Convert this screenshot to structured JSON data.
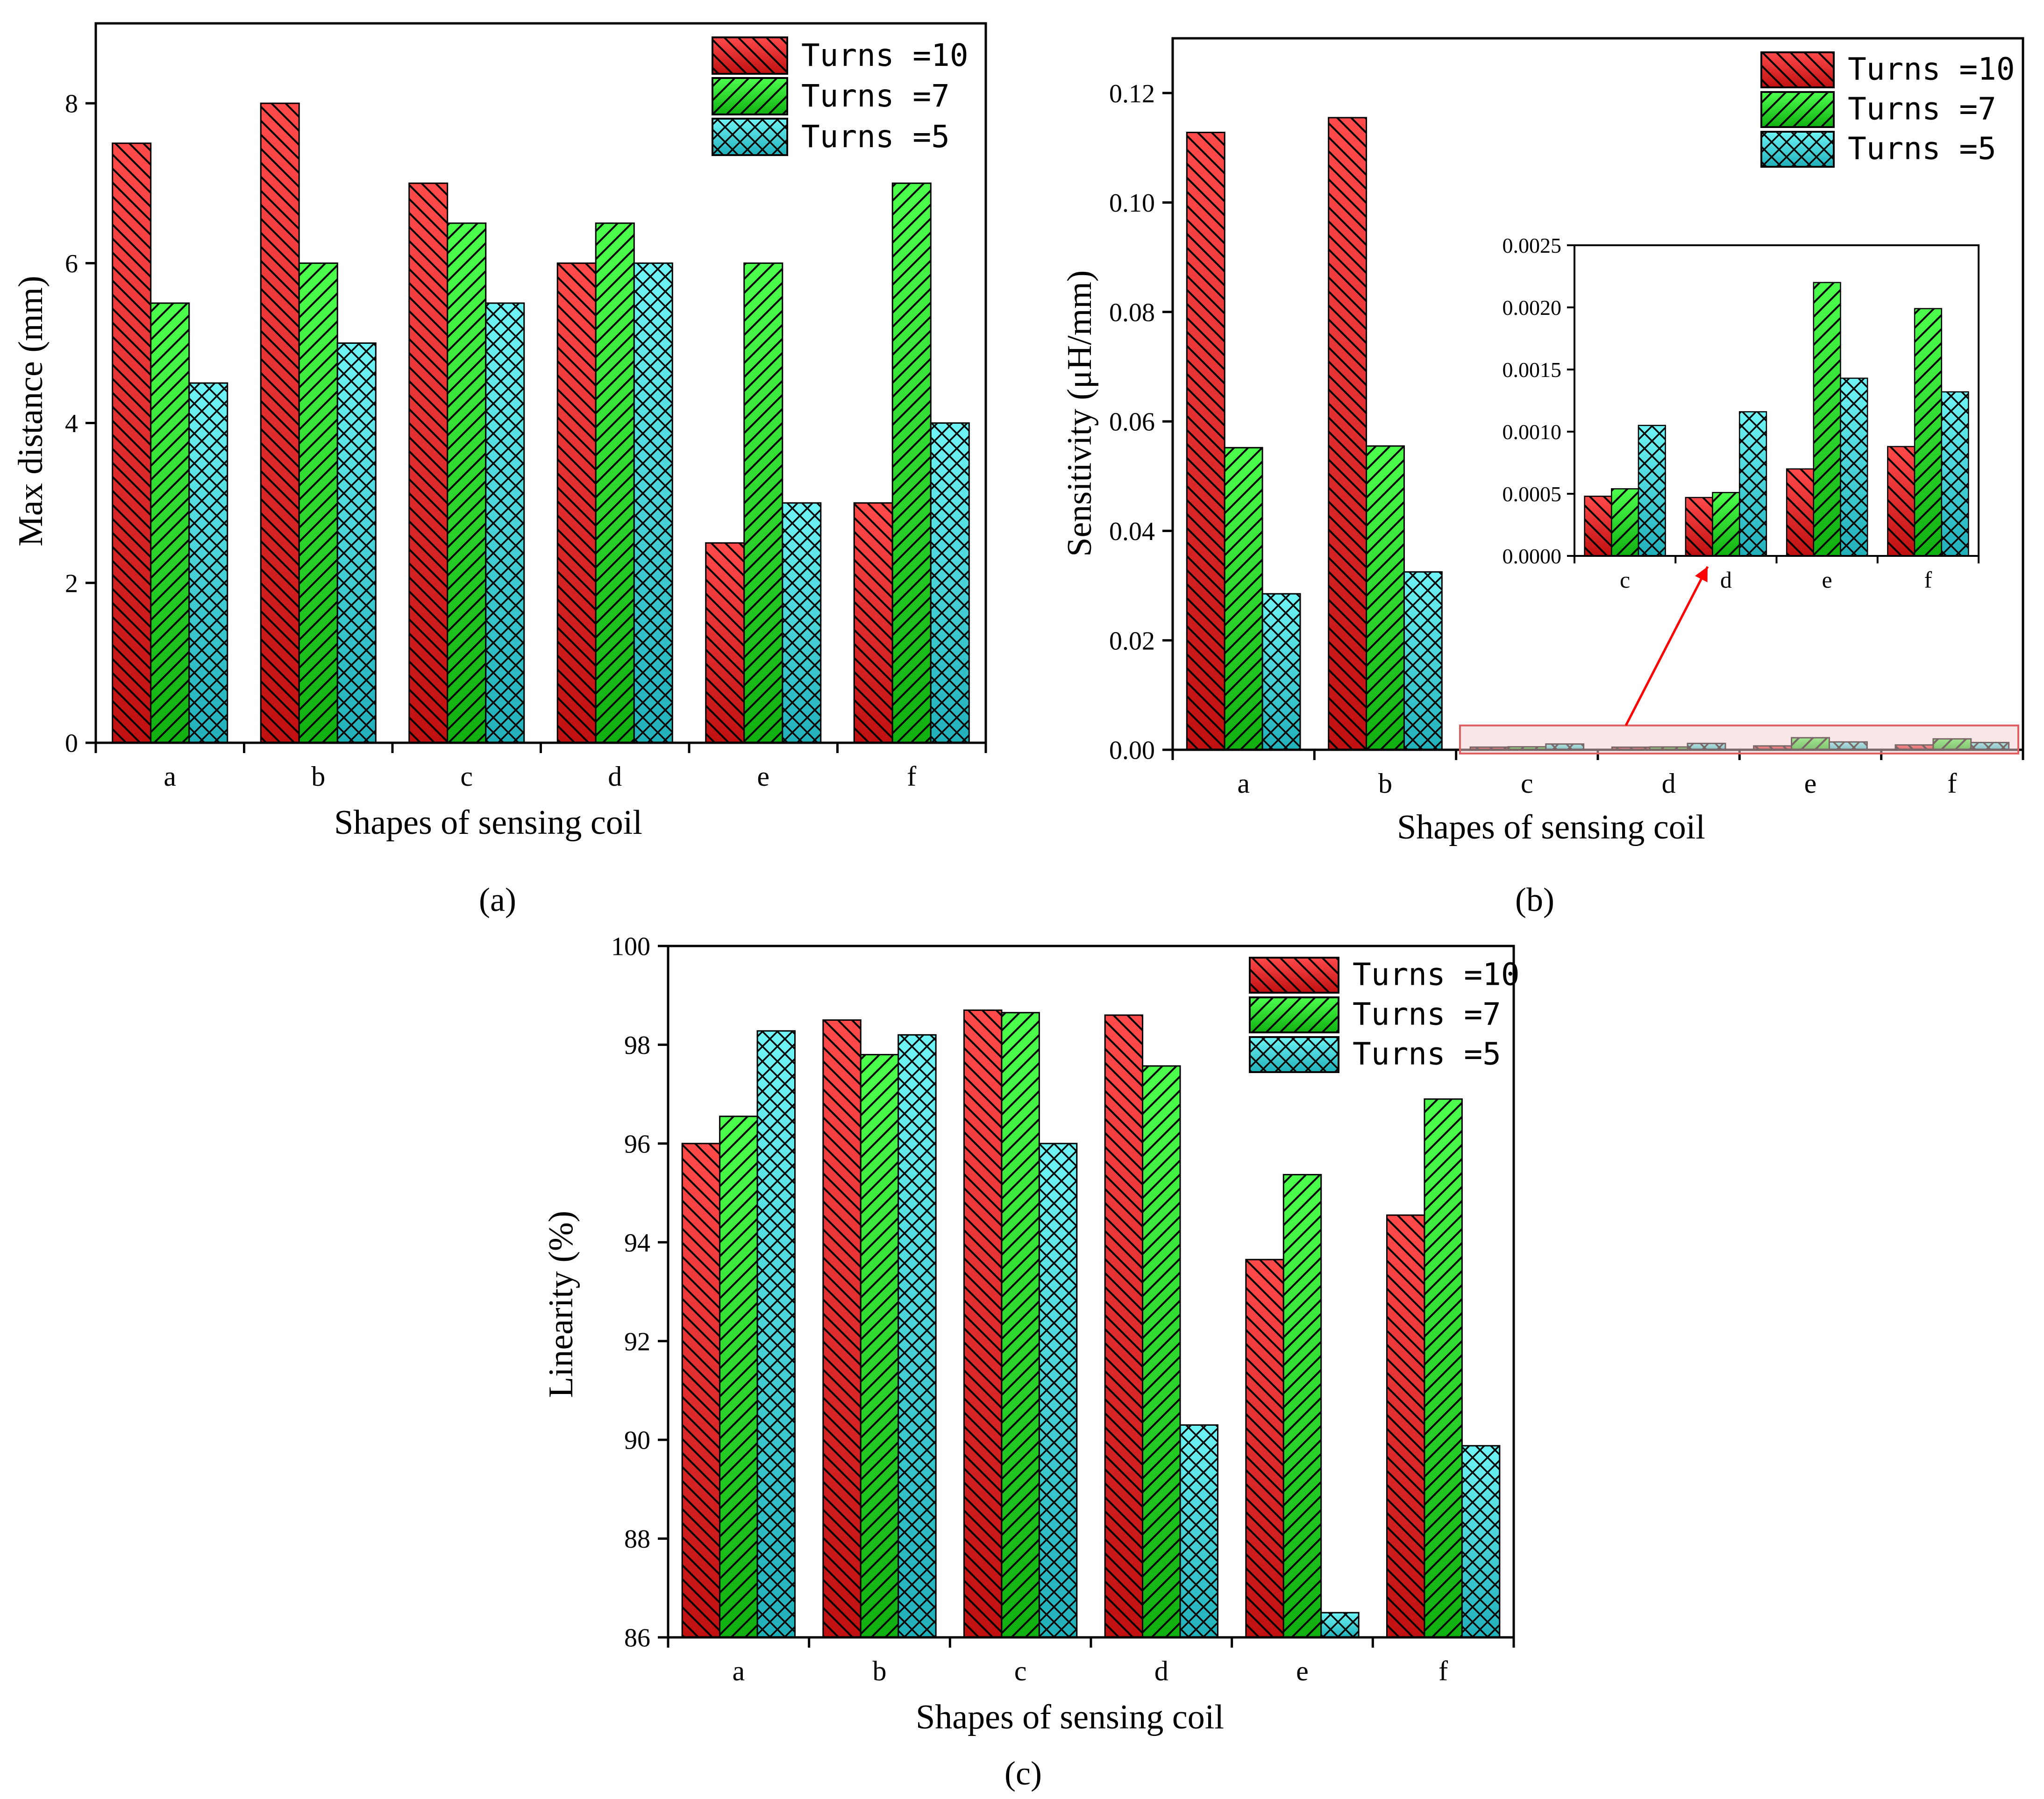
{
  "figure": {
    "panels": [
      "a",
      "b",
      "c"
    ],
    "panel_labels": [
      "(a)",
      "(b)",
      "(c)"
    ]
  },
  "colors": {
    "turns10_fill_top": "#ff4a4a",
    "turns10_fill_bottom": "#c01010",
    "turns7_fill_top": "#4dff4d",
    "turns7_fill_bottom": "#10b010",
    "turns5_fill_top": "#6ff5f5",
    "turns5_fill_bottom": "#20b0b8",
    "zoom_box": "#e06060",
    "arrow": "#ff0000"
  },
  "chart_data": [
    {
      "id": "a",
      "type": "bar",
      "title": "",
      "xlabel": "Shapes of sensing coil",
      "ylabel": "Max distance (mm)",
      "categories": [
        "a",
        "b",
        "c",
        "d",
        "e",
        "f"
      ],
      "ylim": [
        0,
        9
      ],
      "yticks": [
        0,
        2,
        4,
        6,
        8
      ],
      "ytick_labels": [
        "0",
        "2",
        "4",
        "6",
        "8"
      ],
      "legend": "top-right",
      "series": [
        {
          "name": "Turns =10",
          "pattern": "backslash",
          "values": [
            7.5,
            8.0,
            7.0,
            6.0,
            2.5,
            3.0
          ]
        },
        {
          "name": "Turns =7",
          "pattern": "slash",
          "values": [
            5.5,
            6.0,
            6.5,
            6.5,
            6.0,
            7.0
          ]
        },
        {
          "name": "Turns =5",
          "pattern": "cross",
          "values": [
            4.5,
            5.0,
            5.5,
            6.0,
            3.0,
            4.0
          ]
        }
      ]
    },
    {
      "id": "b",
      "type": "bar",
      "title": "",
      "xlabel": "Shapes of sensing coil",
      "ylabel": "Sensitivity (μH/mm)",
      "categories": [
        "a",
        "b",
        "c",
        "d",
        "e",
        "f"
      ],
      "ylim": [
        0,
        0.13
      ],
      "yticks": [
        0,
        0.02,
        0.04,
        0.06,
        0.08,
        0.1,
        0.12
      ],
      "ytick_labels": [
        "0.00",
        "0.02",
        "0.04",
        "0.06",
        "0.08",
        "0.10",
        "0.12"
      ],
      "legend": "top-right",
      "series": [
        {
          "name": "Turns =10",
          "pattern": "backslash",
          "values": [
            0.1128,
            0.1155,
            0.00048,
            0.00047,
            0.0007,
            0.00088
          ]
        },
        {
          "name": "Turns =7",
          "pattern": "slash",
          "values": [
            0.0552,
            0.0555,
            0.00054,
            0.00051,
            0.0022,
            0.00199
          ]
        },
        {
          "name": "Turns =5",
          "pattern": "cross",
          "values": [
            0.0285,
            0.0325,
            0.00105,
            0.00116,
            0.00143,
            0.00132
          ]
        }
      ],
      "inset": {
        "type": "bar",
        "categories": [
          "c",
          "d",
          "e",
          "f"
        ],
        "ylim": [
          0,
          0.0025
        ],
        "yticks": [
          0,
          0.0005,
          0.001,
          0.0015,
          0.002,
          0.0025
        ],
        "ytick_labels": [
          "0.0000",
          "0.0005",
          "0.0010",
          "0.0015",
          "0.0020",
          "0.0025"
        ],
        "series": [
          {
            "name": "Turns =10",
            "values": [
              0.00048,
              0.00047,
              0.0007,
              0.00088
            ]
          },
          {
            "name": "Turns =7",
            "values": [
              0.00054,
              0.00051,
              0.0022,
              0.00199
            ]
          },
          {
            "name": "Turns =5",
            "values": [
              0.00105,
              0.00116,
              0.00143,
              0.00132
            ]
          }
        ]
      }
    },
    {
      "id": "c",
      "type": "bar",
      "title": "",
      "xlabel": "Shapes of sensing coil",
      "ylabel": "Linearity (%)",
      "categories": [
        "a",
        "b",
        "c",
        "d",
        "e",
        "f"
      ],
      "ylim": [
        86,
        100
      ],
      "yticks": [
        86,
        88,
        90,
        92,
        94,
        96,
        98,
        100
      ],
      "ytick_labels": [
        "86",
        "88",
        "90",
        "92",
        "94",
        "96",
        "98",
        "100"
      ],
      "legend": "top-right",
      "series": [
        {
          "name": "Turns =10",
          "pattern": "backslash",
          "values": [
            96.0,
            98.5,
            98.7,
            98.6,
            93.65,
            94.55
          ]
        },
        {
          "name": "Turns =7",
          "pattern": "slash",
          "values": [
            96.55,
            97.8,
            98.65,
            97.57,
            95.37,
            96.9
          ]
        },
        {
          "name": "Turns =5",
          "pattern": "cross",
          "values": [
            98.28,
            98.2,
            96.0,
            90.3,
            86.5,
            89.88
          ]
        }
      ]
    }
  ]
}
